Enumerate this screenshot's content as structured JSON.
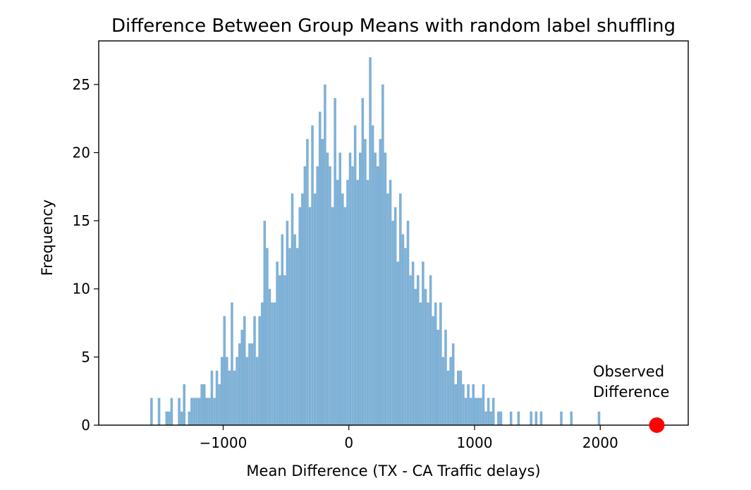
{
  "chart_data": {
    "type": "bar",
    "title": "Difference Between Group Means with random label shuffling",
    "xlabel": "Mean Difference (TX - CA Traffic delays)",
    "ylabel": "Frequency",
    "xlim": [
      -1990,
      2700
    ],
    "ylim": [
      0,
      28.2
    ],
    "x_ticks": [
      -1000,
      0,
      1000,
      2000
    ],
    "x_tick_labels": [
      "−1000",
      "0",
      "1000",
      "2000"
    ],
    "y_ticks": [
      0,
      5,
      10,
      15,
      20,
      25
    ],
    "y_tick_labels": [
      "0",
      "5",
      "10",
      "15",
      "20",
      "25"
    ],
    "bin_width": 20,
    "bar_color": "#7fb1d6",
    "bins": [
      {
        "x": -1570,
        "count": 2
      },
      {
        "x": -1510,
        "count": 2
      },
      {
        "x": -1450,
        "count": 1
      },
      {
        "x": -1430,
        "count": 1
      },
      {
        "x": -1410,
        "count": 2
      },
      {
        "x": -1350,
        "count": 2
      },
      {
        "x": -1330,
        "count": 1
      },
      {
        "x": -1310,
        "count": 3
      },
      {
        "x": -1270,
        "count": 1
      },
      {
        "x": -1250,
        "count": 2
      },
      {
        "x": -1230,
        "count": 2
      },
      {
        "x": -1210,
        "count": 2
      },
      {
        "x": -1190,
        "count": 2
      },
      {
        "x": -1170,
        "count": 3
      },
      {
        "x": -1150,
        "count": 3
      },
      {
        "x": -1130,
        "count": 2
      },
      {
        "x": -1110,
        "count": 2
      },
      {
        "x": -1090,
        "count": 4
      },
      {
        "x": -1070,
        "count": 2
      },
      {
        "x": -1050,
        "count": 4
      },
      {
        "x": -1030,
        "count": 3
      },
      {
        "x": -1010,
        "count": 5
      },
      {
        "x": -990,
        "count": 8
      },
      {
        "x": -970,
        "count": 5
      },
      {
        "x": -950,
        "count": 4
      },
      {
        "x": -930,
        "count": 9
      },
      {
        "x": -910,
        "count": 4
      },
      {
        "x": -890,
        "count": 5
      },
      {
        "x": -870,
        "count": 6
      },
      {
        "x": -850,
        "count": 7
      },
      {
        "x": -830,
        "count": 8
      },
      {
        "x": -810,
        "count": 5
      },
      {
        "x": -790,
        "count": 6
      },
      {
        "x": -770,
        "count": 6
      },
      {
        "x": -750,
        "count": 8
      },
      {
        "x": -730,
        "count": 5
      },
      {
        "x": -710,
        "count": 8
      },
      {
        "x": -690,
        "count": 9
      },
      {
        "x": -670,
        "count": 15
      },
      {
        "x": -650,
        "count": 13
      },
      {
        "x": -630,
        "count": 10
      },
      {
        "x": -610,
        "count": 9
      },
      {
        "x": -590,
        "count": 9
      },
      {
        "x": -570,
        "count": 12
      },
      {
        "x": -550,
        "count": 11
      },
      {
        "x": -530,
        "count": 14
      },
      {
        "x": -510,
        "count": 11
      },
      {
        "x": -490,
        "count": 15
      },
      {
        "x": -470,
        "count": 13
      },
      {
        "x": -450,
        "count": 17
      },
      {
        "x": -430,
        "count": 14
      },
      {
        "x": -410,
        "count": 13
      },
      {
        "x": -390,
        "count": 16
      },
      {
        "x": -370,
        "count": 17
      },
      {
        "x": -350,
        "count": 19
      },
      {
        "x": -330,
        "count": 21
      },
      {
        "x": -310,
        "count": 16
      },
      {
        "x": -290,
        "count": 22
      },
      {
        "x": -270,
        "count": 17
      },
      {
        "x": -250,
        "count": 19
      },
      {
        "x": -230,
        "count": 23
      },
      {
        "x": -210,
        "count": 21
      },
      {
        "x": -190,
        "count": 25
      },
      {
        "x": -170,
        "count": 20
      },
      {
        "x": -150,
        "count": 19
      },
      {
        "x": -130,
        "count": 16
      },
      {
        "x": -110,
        "count": 24
      },
      {
        "x": -90,
        "count": 18
      },
      {
        "x": -70,
        "count": 20
      },
      {
        "x": -50,
        "count": 17
      },
      {
        "x": -30,
        "count": 16
      },
      {
        "x": -10,
        "count": 18
      },
      {
        "x": 10,
        "count": 20
      },
      {
        "x": 30,
        "count": 19
      },
      {
        "x": 50,
        "count": 22
      },
      {
        "x": 70,
        "count": 18
      },
      {
        "x": 90,
        "count": 20
      },
      {
        "x": 110,
        "count": 24
      },
      {
        "x": 130,
        "count": 21
      },
      {
        "x": 150,
        "count": 18
      },
      {
        "x": 170,
        "count": 27
      },
      {
        "x": 190,
        "count": 22
      },
      {
        "x": 210,
        "count": 20
      },
      {
        "x": 230,
        "count": 19
      },
      {
        "x": 250,
        "count": 21
      },
      {
        "x": 270,
        "count": 25
      },
      {
        "x": 290,
        "count": 20
      },
      {
        "x": 310,
        "count": 17
      },
      {
        "x": 330,
        "count": 18
      },
      {
        "x": 350,
        "count": 15
      },
      {
        "x": 370,
        "count": 16
      },
      {
        "x": 390,
        "count": 12
      },
      {
        "x": 410,
        "count": 17
      },
      {
        "x": 430,
        "count": 14
      },
      {
        "x": 450,
        "count": 13
      },
      {
        "x": 470,
        "count": 15
      },
      {
        "x": 490,
        "count": 11
      },
      {
        "x": 510,
        "count": 12
      },
      {
        "x": 530,
        "count": 10
      },
      {
        "x": 550,
        "count": 11
      },
      {
        "x": 570,
        "count": 9
      },
      {
        "x": 590,
        "count": 12
      },
      {
        "x": 610,
        "count": 10
      },
      {
        "x": 630,
        "count": 9
      },
      {
        "x": 650,
        "count": 11
      },
      {
        "x": 670,
        "count": 8
      },
      {
        "x": 690,
        "count": 9
      },
      {
        "x": 710,
        "count": 7
      },
      {
        "x": 730,
        "count": 9
      },
      {
        "x": 750,
        "count": 5
      },
      {
        "x": 770,
        "count": 7
      },
      {
        "x": 790,
        "count": 4
      },
      {
        "x": 810,
        "count": 5
      },
      {
        "x": 830,
        "count": 6
      },
      {
        "x": 850,
        "count": 3
      },
      {
        "x": 870,
        "count": 4
      },
      {
        "x": 890,
        "count": 4
      },
      {
        "x": 910,
        "count": 3
      },
      {
        "x": 930,
        "count": 2
      },
      {
        "x": 950,
        "count": 3
      },
      {
        "x": 970,
        "count": 2
      },
      {
        "x": 990,
        "count": 3
      },
      {
        "x": 1010,
        "count": 2
      },
      {
        "x": 1030,
        "count": 2
      },
      {
        "x": 1050,
        "count": 2
      },
      {
        "x": 1070,
        "count": 3
      },
      {
        "x": 1090,
        "count": 1
      },
      {
        "x": 1110,
        "count": 2
      },
      {
        "x": 1130,
        "count": 1
      },
      {
        "x": 1150,
        "count": 2
      },
      {
        "x": 1190,
        "count": 1
      },
      {
        "x": 1210,
        "count": 1
      },
      {
        "x": 1290,
        "count": 1
      },
      {
        "x": 1350,
        "count": 1
      },
      {
        "x": 1450,
        "count": 1
      },
      {
        "x": 1490,
        "count": 1
      },
      {
        "x": 1530,
        "count": 1
      },
      {
        "x": 1690,
        "count": 1
      },
      {
        "x": 1770,
        "count": 1
      },
      {
        "x": 1990,
        "count": 1
      }
    ],
    "observed_point": {
      "x": 2450,
      "y": 0,
      "color": "#ff0000"
    },
    "annotations": [
      {
        "text_lines": [
          "Observed",
          "Difference"
        ]
      }
    ]
  }
}
